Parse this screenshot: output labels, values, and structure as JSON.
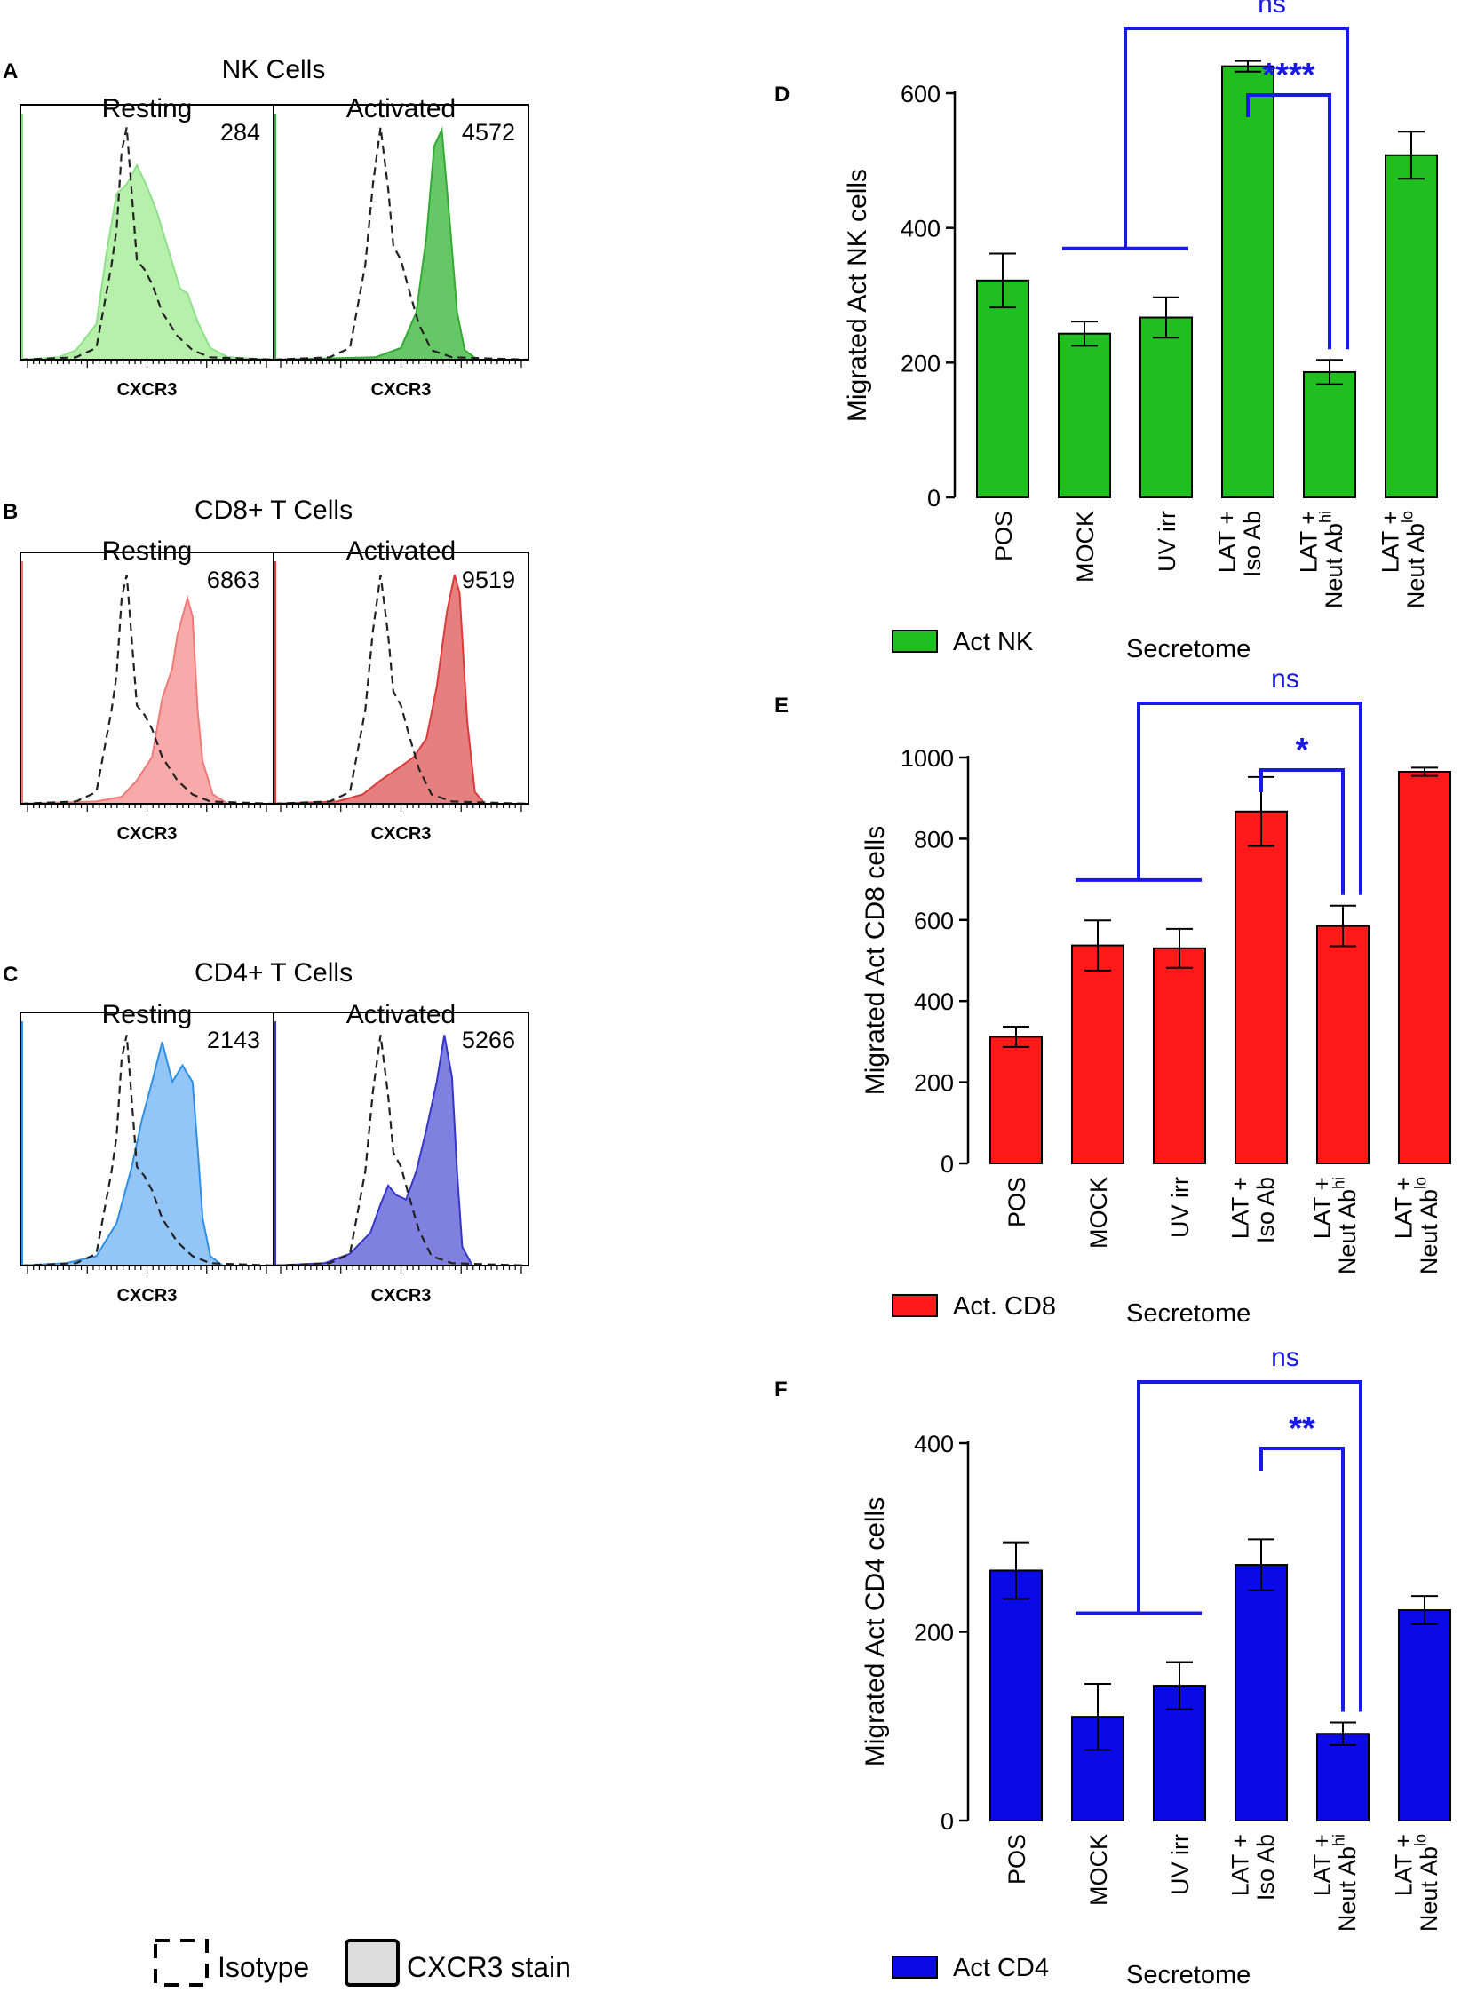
{
  "colors": {
    "nk": "#1fbf1f",
    "nk_light": "#b6f0aa",
    "nk_line": "#8fe08a",
    "cd8": "#ff1a1a",
    "cd8_light": "#f8a9a9",
    "cd8_line": "#f07a7a",
    "cd4": "#0a0ae6",
    "cd4_light": "#93c6f7",
    "cd4_line": "#2f8fe6",
    "cd4_act": "#8080e0",
    "cd4_act_line": "#3535c8",
    "nk_act": "#66c766",
    "nk_act_line": "#33aa33",
    "cd8_act": "#e68080",
    "cd8_act_line": "#dd3a3a",
    "stat": "#1a1ae6",
    "axis": "#000000"
  },
  "histograms": [
    {
      "panel": "A",
      "title": "NK Cells",
      "resting": {
        "label": "Resting",
        "mfi": "284"
      },
      "activated": {
        "label": "Activated",
        "mfi": "4572"
      },
      "xlabel": "CXCR3"
    },
    {
      "panel": "B",
      "title": "CD8+ T Cells",
      "resting": {
        "label": "Resting",
        "mfi": "6863"
      },
      "activated": {
        "label": "Activated",
        "mfi": "9519"
      },
      "xlabel": "CXCR3"
    },
    {
      "panel": "C",
      "title": "CD4+ T Cells",
      "resting": {
        "label": "Resting",
        "mfi": "2143"
      },
      "activated": {
        "label": "Activated",
        "mfi": "5266"
      },
      "xlabel": "CXCR3"
    }
  ],
  "histogram_legend": {
    "isotype": "Isotype",
    "stain": "CXCR3 stain"
  },
  "chart_data": [
    {
      "panel": "D",
      "type": "bar",
      "ylabel": "Migrated Act NK cells",
      "ylim": [
        0,
        700
      ],
      "yticks": [
        0,
        200,
        400,
        600
      ],
      "categories": [
        "POS",
        "MOCK",
        "UV irr",
        "LAT + Iso Ab",
        "LAT + Neut Ab^hi",
        "LAT + Neut Ab^lo"
      ],
      "values": [
        322,
        243,
        267,
        640,
        186,
        508
      ],
      "errors": [
        40,
        18,
        30,
        8,
        18,
        35
      ],
      "legend": {
        "series": "Act NK",
        "group": "Secretome"
      },
      "significance": [
        {
          "label": "****",
          "from": "LAT + Iso Ab",
          "to": "LAT + Neut Ab^hi"
        },
        {
          "label": "ns",
          "from": "MOCK / UV irr",
          "to": "LAT + Neut Ab^hi"
        }
      ]
    },
    {
      "panel": "E",
      "type": "bar",
      "ylabel": "Migrated Act CD8 cells",
      "ylim": [
        0,
        1000
      ],
      "yticks": [
        0,
        200,
        400,
        600,
        800,
        1000
      ],
      "categories": [
        "POS",
        "MOCK",
        "UV irr",
        "LAT + Iso Ab",
        "LAT + Neut Ab^hi",
        "LAT + Neut Ab^lo"
      ],
      "values": [
        312,
        537,
        530,
        867,
        585,
        965
      ],
      "errors": [
        25,
        62,
        48,
        85,
        50,
        10
      ],
      "legend": {
        "series": "Act. CD8",
        "group": "Secretome"
      },
      "significance": [
        {
          "label": "*",
          "from": "LAT + Iso Ab",
          "to": "LAT + Neut Ab^hi"
        },
        {
          "label": "ns",
          "from": "MOCK / UV irr",
          "to": "LAT + Neut Ab^hi"
        }
      ]
    },
    {
      "panel": "F",
      "type": "bar",
      "ylabel": "Migrated Act CD4 cells",
      "ylim": [
        0,
        400
      ],
      "yticks": [
        0,
        200,
        400
      ],
      "categories": [
        "POS",
        "MOCK",
        "UV irr",
        "LAT + Iso Ab",
        "LAT + Neut Ab^hi",
        "LAT + Neut Ab^lo"
      ],
      "values": [
        265,
        110,
        143,
        271,
        92,
        223
      ],
      "errors": [
        30,
        35,
        25,
        27,
        12,
        15
      ],
      "legend": {
        "series": "Act CD4",
        "group": "Secretome"
      },
      "significance": [
        {
          "label": "**",
          "from": "LAT + Iso Ab",
          "to": "LAT + Neut Ab^hi"
        },
        {
          "label": "ns",
          "from": "MOCK / UV irr",
          "to": "LAT + Neut Ab^hi"
        }
      ]
    }
  ]
}
